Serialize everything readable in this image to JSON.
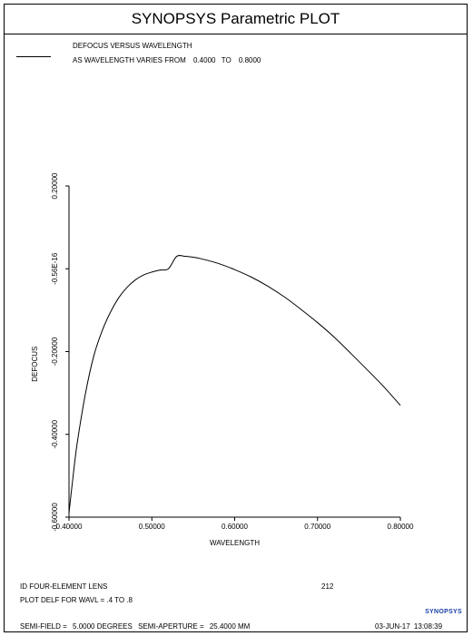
{
  "window": {
    "title": "SYNOPSYS Parametric PLOT"
  },
  "legend": {
    "heading": "DEFOCUS VERSUS WAVELENGTH",
    "series_prefix": "AS WAVELENGTH VARIES FROM",
    "range_from": "0.4000",
    "range_to_word": "TO",
    "range_to": "0.8000"
  },
  "footer": {
    "lens_id": "ID FOUR-ELEMENT LENS",
    "lens_number": "212",
    "plot_command": "PLOT DELF FOR WAVL = .4 TO .8",
    "semi_field_label": "SEMI-FIELD =",
    "semi_field_value": "5.0000 DEGREES",
    "semi_aperture_label": "SEMI-APERTURE =",
    "semi_aperture_value": "25.4000 MM",
    "date": "03-JUN-17",
    "time": "13:08:39",
    "brand": "SYNOPSYS"
  },
  "chart_data": {
    "type": "line",
    "title": "DEFOCUS VERSUS WAVELENGTH",
    "xlabel": "WAVELENGTH",
    "ylabel": "DEFOCUS",
    "xlim": [
      0.4,
      0.8
    ],
    "ylim": [
      -0.6,
      0.2
    ],
    "x_ticks": [
      "0.40000",
      "0.50000",
      "0.60000",
      "0.70000",
      "0.80000"
    ],
    "x_tick_values": [
      0.4,
      0.5,
      0.6,
      0.7,
      0.8
    ],
    "y_ticks": [
      "0.20000",
      "-0.56E-16",
      "-0.20000",
      "-0.40000",
      "-0.60000"
    ],
    "y_tick_values": [
      0.2,
      0.0,
      -0.2,
      -0.4,
      -0.6
    ],
    "grid": false,
    "series": [
      {
        "x": [
          0.4,
          0.405,
          0.41,
          0.42,
          0.43,
          0.44,
          0.45,
          0.46,
          0.47,
          0.48,
          0.49,
          0.5,
          0.51,
          0.52,
          0.53,
          0.54,
          0.55,
          0.56,
          0.58,
          0.6,
          0.62,
          0.64,
          0.66,
          0.68,
          0.7,
          0.72,
          0.74,
          0.76,
          0.78,
          0.8
        ],
        "y": [
          -0.59,
          -0.5,
          -0.42,
          -0.3,
          -0.21,
          -0.15,
          -0.105,
          -0.07,
          -0.045,
          -0.027,
          -0.015,
          -0.008,
          -0.003,
          0.0,
          0.03,
          0.03,
          0.028,
          0.024,
          0.013,
          -0.002,
          -0.02,
          -0.042,
          -0.068,
          -0.098,
          -0.13,
          -0.165,
          -0.204,
          -0.244,
          -0.285,
          -0.33
        ]
      }
    ]
  }
}
